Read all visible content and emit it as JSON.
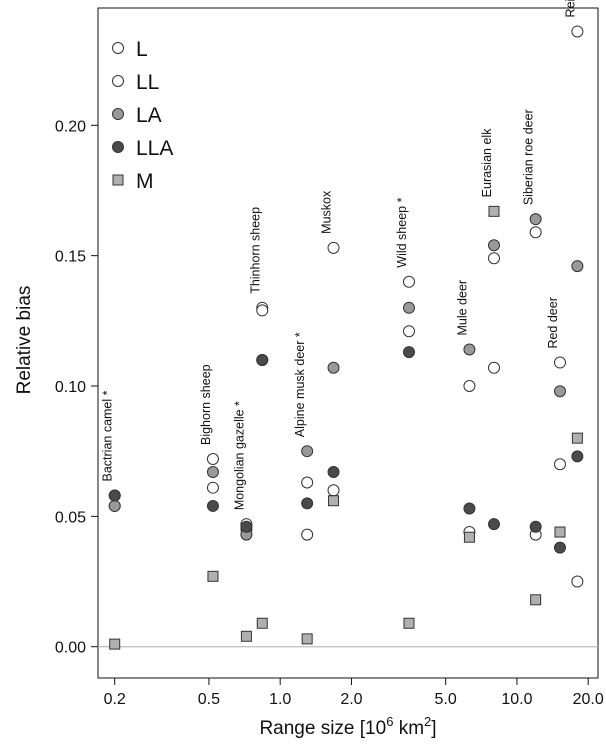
{
  "chart_data": {
    "type": "scatter",
    "xlabel": "Range size [10^6 km^2]",
    "xlabel_parts": {
      "prefix": "Range size [10",
      "exp1": "6",
      "middle": " km",
      "exp2": "2",
      "suffix": "]"
    },
    "ylabel": "Relative bias",
    "x_scale": "log",
    "xlim": [
      0.17,
      22.0
    ],
    "ylim": [
      -0.012,
      0.245
    ],
    "x_ticks": [
      {
        "value": 0.2,
        "label": "0.2"
      },
      {
        "value": 0.5,
        "label": "0.5"
      },
      {
        "value": 1.0,
        "label": "1.0"
      },
      {
        "value": 2.0,
        "label": "2.0"
      },
      {
        "value": 5.0,
        "label": "5.0"
      },
      {
        "value": 10.0,
        "label": "10.0"
      },
      {
        "value": 20.0,
        "label": "20.0"
      }
    ],
    "y_ticks": [
      {
        "value": 0.0,
        "label": "0.00"
      },
      {
        "value": 0.05,
        "label": "0.05"
      },
      {
        "value": 0.1,
        "label": "0.10"
      },
      {
        "value": 0.15,
        "label": "0.15"
      },
      {
        "value": 0.2,
        "label": "0.20"
      }
    ],
    "zero_line": true,
    "grid": false,
    "legend_position": "top-left",
    "series": [
      {
        "name": "L",
        "marker": "circle",
        "fill": "#ffffff",
        "values": [
          0.058,
          0.072,
          0.047,
          0.13,
          0.063,
          0.153,
          0.14,
          0.1,
          0.149,
          0.159,
          0.109,
          0.236
        ]
      },
      {
        "name": "LL",
        "marker": "circle",
        "fill": "#ffffff",
        "values": [
          0.054,
          0.061,
          0.045,
          0.129,
          0.043,
          0.06,
          0.121,
          0.044,
          0.107,
          0.043,
          0.07,
          0.025
        ]
      },
      {
        "name": "LA",
        "marker": "circle",
        "fill": "#999999",
        "values": [
          0.054,
          0.067,
          0.043,
          0.11,
          0.075,
          0.107,
          0.13,
          0.114,
          0.154,
          0.164,
          0.098,
          0.146
        ]
      },
      {
        "name": "LLA",
        "marker": "circle",
        "fill": "#4a4a4a",
        "values": [
          0.058,
          0.054,
          0.046,
          0.11,
          0.055,
          0.067,
          0.113,
          0.053,
          0.047,
          0.046,
          0.038,
          0.073
        ]
      },
      {
        "name": "M",
        "marker": "square",
        "fill": "#b0b0b0",
        "values": [
          0.001,
          0.027,
          0.004,
          0.009,
          0.003,
          0.056,
          0.009,
          0.042,
          0.167,
          0.018,
          0.044,
          0.08
        ]
      }
    ],
    "species": [
      {
        "name": "Bactrian camel *",
        "x": 0.2
      },
      {
        "name": "Bighorn sheep",
        "x": 0.52
      },
      {
        "name": "Mongolian gazelle *",
        "x": 0.72
      },
      {
        "name": "Thinhorn sheep",
        "x": 0.84
      },
      {
        "name": "Alpine musk deer *",
        "x": 1.3
      },
      {
        "name": "Muskox",
        "x": 1.68
      },
      {
        "name": "Wild sheep *",
        "x": 3.5
      },
      {
        "name": "Mule deer",
        "x": 6.3
      },
      {
        "name": "Eurasian elk",
        "x": 8.0
      },
      {
        "name": "Siberian roe deer",
        "x": 12.0
      },
      {
        "name": "Red deer",
        "x": 15.2
      },
      {
        "name": "Reindeer",
        "x": 18.0
      }
    ],
    "colors": {
      "stroke": "#333333",
      "zero_line": "#bbbbbb",
      "axis": "#111111"
    }
  }
}
